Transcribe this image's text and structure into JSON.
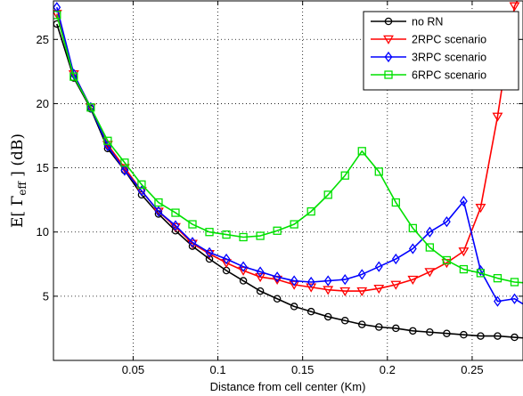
{
  "chart_data": {
    "type": "line",
    "title": "",
    "xlabel": "Distance from cell center (Km)",
    "ylabel": "E[ Γ_eff ] (dB)",
    "ylabel_parts": {
      "prefix": "E[ ",
      "symbol": "Γ",
      "subscript": "eff",
      "suffix": " ] (dB)"
    },
    "xlim": [
      0.003,
      0.28
    ],
    "ylim": [
      0,
      28
    ],
    "xticks": [
      0.05,
      0.1,
      0.15,
      0.2,
      0.25
    ],
    "xtick_labels": [
      "0.05",
      "0.1",
      "0.15",
      "0.2",
      "0.25"
    ],
    "yticks": [
      5,
      10,
      15,
      20,
      25
    ],
    "ytick_labels": [
      "5",
      "10",
      "15",
      "20",
      "25"
    ],
    "grid": true,
    "grid_style": "dotted",
    "legend_position": "top-right",
    "x": [
      0.005,
      0.015,
      0.025,
      0.035,
      0.045,
      0.055,
      0.065,
      0.075,
      0.085,
      0.095,
      0.105,
      0.115,
      0.125,
      0.135,
      0.145,
      0.155,
      0.165,
      0.175,
      0.185,
      0.195,
      0.205,
      0.215,
      0.225,
      0.235,
      0.245,
      0.255,
      0.265,
      0.275,
      0.285
    ],
    "series": [
      {
        "name": "no RN",
        "color": "#000000",
        "marker": "circle",
        "values": [
          26.2,
          22.0,
          19.6,
          16.5,
          14.8,
          12.9,
          11.4,
          10.1,
          8.9,
          7.9,
          7.0,
          6.2,
          5.4,
          4.8,
          4.2,
          3.8,
          3.4,
          3.1,
          2.8,
          2.6,
          2.5,
          2.3,
          2.2,
          2.1,
          2.0,
          1.9,
          1.9,
          1.8,
          1.7
        ]
      },
      {
        "name": "2RPC scenario",
        "color": "#ff0000",
        "marker": "triangle-down",
        "values": [
          27.0,
          22.3,
          19.7,
          16.8,
          15.0,
          13.2,
          11.6,
          10.4,
          9.1,
          8.3,
          7.6,
          7.0,
          6.5,
          6.3,
          5.9,
          5.7,
          5.5,
          5.4,
          5.4,
          5.6,
          5.9,
          6.3,
          6.9,
          7.6,
          8.5,
          11.9,
          19.0,
          27.6,
          30.0
        ]
      },
      {
        "name": "3RPC scenario",
        "color": "#0000ff",
        "marker": "diamond",
        "values": [
          27.5,
          22.3,
          19.7,
          16.7,
          14.8,
          13.2,
          11.6,
          10.5,
          9.2,
          8.4,
          7.9,
          7.3,
          6.9,
          6.5,
          6.2,
          6.1,
          6.2,
          6.3,
          6.7,
          7.3,
          7.9,
          8.7,
          10.0,
          10.8,
          12.4,
          7.0,
          4.6,
          4.8,
          4.0
        ]
      },
      {
        "name": "6RPC scenario",
        "color": "#00e000",
        "marker": "square",
        "values": [
          26.9,
          22.1,
          19.7,
          17.1,
          15.4,
          13.7,
          12.3,
          11.5,
          10.6,
          10.0,
          9.8,
          9.6,
          9.7,
          10.1,
          10.6,
          11.6,
          12.9,
          14.4,
          16.3,
          14.7,
          12.3,
          10.3,
          8.8,
          7.8,
          7.1,
          6.8,
          6.4,
          6.1,
          6.0
        ]
      }
    ]
  }
}
